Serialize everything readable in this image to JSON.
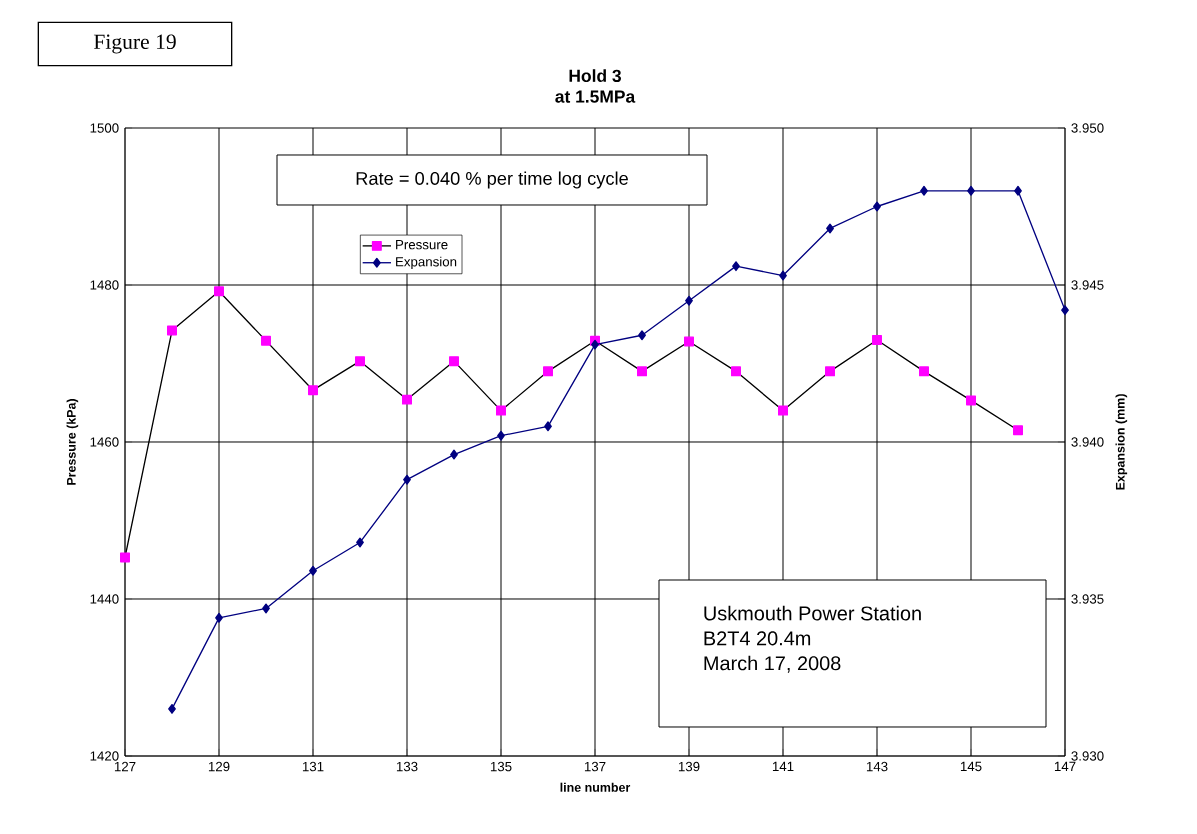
{
  "chart_data": {
    "type": "line",
    "title": "Hold 3",
    "subtitle": "at 1.5MPa",
    "xlabel": "line number",
    "ylabel": "Pressure (kPa)",
    "y2label": "Expansion (mm)",
    "annotations": [
      "Figure 19",
      "Rate = 0.040 % per time log cycle",
      "Uskmouth Power Station",
      "B2T4  20.4m",
      "March 17, 2008"
    ],
    "x": [
      127,
      128,
      129,
      130,
      131,
      132,
      133,
      134,
      135,
      136,
      137,
      138,
      139,
      140,
      141,
      142,
      143,
      144,
      145,
      146,
      147
    ],
    "series": [
      {
        "name": "Pressure",
        "color": "#ff00ff",
        "marker": "square",
        "values": [
          1445.3,
          1474.2,
          1479.2,
          1472.9,
          1466.6,
          1470.3,
          1465.4,
          1470.3,
          1464.0,
          1469.0,
          1472.9,
          1469.0,
          1472.8,
          1469.0,
          1464.0,
          1469.0,
          1473.0,
          1469.0,
          1465.3,
          1461.5,
          null
        ]
      },
      {
        "name": "Expansion",
        "color": "#000080",
        "marker": "diamond",
        "axis": "y2",
        "values": [
          null,
          3.9315,
          3.9344,
          3.9347,
          3.9359,
          3.9368,
          3.9388,
          3.9396,
          3.9402,
          3.9405,
          3.9431,
          3.9434,
          3.9445,
          3.9456,
          3.9453,
          3.9468,
          3.9475,
          3.948,
          3.948,
          3.948,
          3.9442
        ]
      }
    ],
    "xlim": [
      127,
      147
    ],
    "xticks": [
      127,
      129,
      131,
      133,
      135,
      137,
      139,
      141,
      143,
      145,
      147
    ],
    "ylim": [
      1420,
      1500
    ],
    "yticks": [
      1420,
      1440,
      1460,
      1480,
      1500
    ],
    "y2lim": [
      3.93,
      3.95
    ],
    "y2ticks": [
      {
        "value": 3.93,
        "label": "3.930"
      },
      {
        "value": 3.935,
        "label": "3.935"
      },
      {
        "value": 3.94,
        "label": "3.940"
      },
      {
        "value": 3.945,
        "label": "3.945"
      },
      {
        "value": 3.95,
        "label": "3.950"
      }
    ],
    "grid": true,
    "legend": "top",
    "line_style": "solid"
  }
}
